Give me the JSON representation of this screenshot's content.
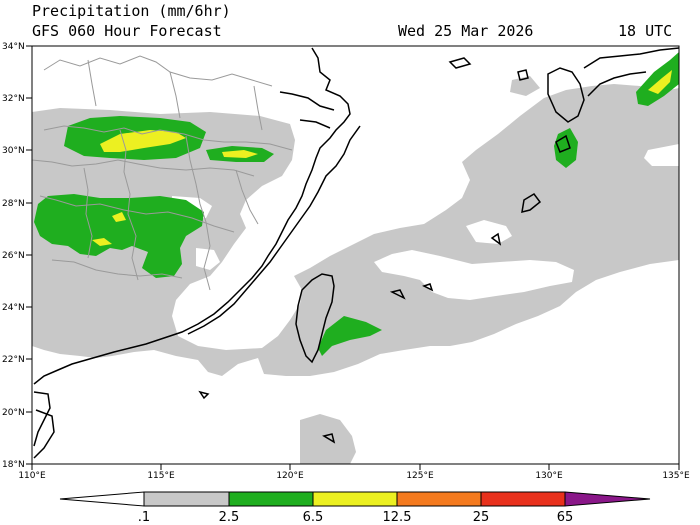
{
  "header": {
    "title": "Precipitation (mm/6hr)",
    "subtitle": "GFS 060 Hour Forecast",
    "date": "Wed 25 Mar 2026",
    "utc": "18 UTC"
  },
  "map_axes": {
    "lon_labels": [
      "110°E",
      "115°E",
      "120°E",
      "125°E",
      "130°E",
      "135°E"
    ],
    "lat_labels": [
      "34°N",
      "32°N",
      "30°N",
      "28°N",
      "26°N",
      "24°N",
      "22°N",
      "20°N",
      "18°N"
    ]
  },
  "colorbar": {
    "labels": [
      ".1",
      "2.5",
      "6.5",
      "12.5",
      "25",
      "65"
    ],
    "colors": [
      "#c8c8c8",
      "#1fae1f",
      "#ecf021",
      "#f47a1e",
      "#e8311c",
      "#8a1789"
    ]
  },
  "colors": {
    "light_precip": "#c8c8c8",
    "moderate_precip": "#1fae1f",
    "heavy_precip": "#ecf021",
    "border": "#9a9a9a",
    "coast": "#000000"
  }
}
